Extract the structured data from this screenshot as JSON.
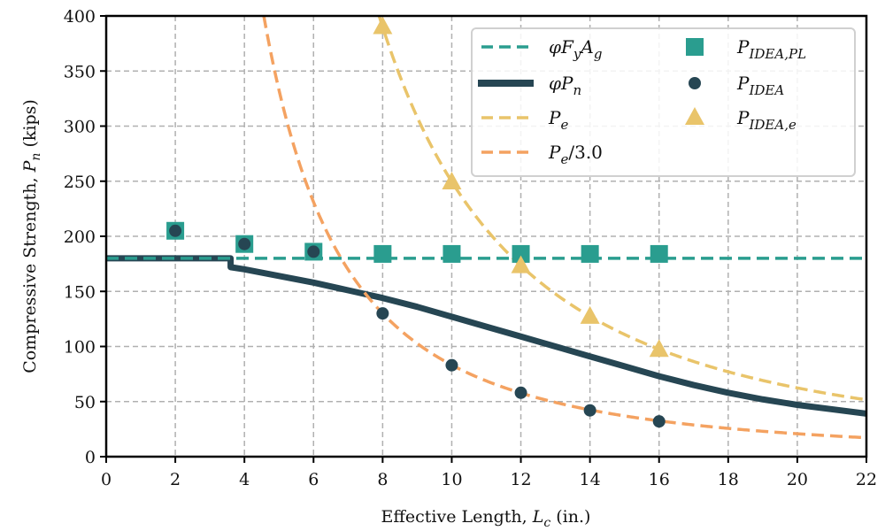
{
  "chart_data": {
    "type": "line",
    "title": "",
    "xlabel": "Effective Length, L_c (in.)",
    "ylabel": "Compressive Strength, P_n (kips)",
    "xlim": [
      0,
      22
    ],
    "ylim": [
      0,
      400
    ],
    "xticks": [
      0,
      2,
      4,
      6,
      8,
      10,
      12,
      14,
      16,
      18,
      20,
      22
    ],
    "yticks": [
      0,
      50,
      100,
      150,
      200,
      250,
      300,
      350,
      400
    ],
    "grid": true,
    "legend_position": "top-right",
    "legend_columns": 2,
    "colors": {
      "phiFyAg": "#2a9d8f",
      "phiPn": "#264653",
      "Pe": "#e9c46a",
      "Pe3": "#f4a261",
      "grid": "#b0b0b0"
    },
    "series": [
      {
        "name": "φF_yA_g",
        "kind": "line-dashed",
        "color_key": "phiFyAg",
        "x": [
          0,
          22
        ],
        "y": [
          180,
          180
        ]
      },
      {
        "name": "φP_n",
        "kind": "line-solid",
        "color_key": "phiPn",
        "x": [
          0,
          3.6,
          3.6,
          4,
          5,
          6,
          7,
          8,
          9,
          10,
          11,
          12,
          13,
          14,
          15,
          16,
          17,
          18,
          19,
          20,
          21,
          22
        ],
        "y": [
          180,
          180,
          172,
          170,
          164,
          158,
          151,
          144,
          136,
          127,
          118,
          109,
          100,
          91,
          82,
          73,
          65,
          58,
          52,
          47,
          43,
          39
        ]
      },
      {
        "name": "P_e",
        "kind": "line-dashed",
        "color_key": "Pe",
        "formula_constant": 24960,
        "x_start": 7.9,
        "x_end": 22
      },
      {
        "name": "P_e/3.0",
        "kind": "line-dashed",
        "color_key": "Pe3",
        "formula_constant": 8320,
        "x_start": 4.56,
        "x_end": 22
      },
      {
        "name": "P_IDEA,PL",
        "kind": "marker-square",
        "color_key": "phiFyAg",
        "x": [
          2,
          4,
          6,
          8,
          10,
          12,
          14,
          16
        ],
        "y": [
          205,
          193,
          186,
          184,
          184,
          184,
          184,
          184
        ]
      },
      {
        "name": "P_IDEA",
        "kind": "marker-circle",
        "color_key": "phiPn",
        "x": [
          2,
          4,
          6,
          8,
          10,
          12,
          14,
          16
        ],
        "y": [
          205,
          193,
          186,
          130,
          83,
          58,
          42,
          32
        ]
      },
      {
        "name": "P_IDEA,e",
        "kind": "marker-triangle",
        "color_key": "Pe",
        "x": [
          8,
          10,
          12,
          14,
          16
        ],
        "y": [
          390,
          249,
          173,
          127,
          97
        ]
      }
    ],
    "legend": [
      {
        "label_main": "φF",
        "label_sub": "y",
        "label_main2": "A",
        "label_sub2": "g",
        "symbol": "dash",
        "color_key": "phiFyAg"
      },
      {
        "label_main": "φP",
        "label_sub": "n",
        "label_main2": "",
        "label_sub2": "",
        "symbol": "solid",
        "color_key": "phiPn"
      },
      {
        "label_main": "P",
        "label_sub": "e",
        "label_main2": "",
        "label_sub2": "",
        "symbol": "dash",
        "color_key": "Pe"
      },
      {
        "label_main": "P",
        "label_sub": "e",
        "label_main2": "/3.0",
        "label_sub2": "",
        "symbol": "dash",
        "color_key": "Pe3"
      },
      {
        "label_main": "P",
        "label_sub": "IDEA,PL",
        "label_main2": "",
        "label_sub2": "",
        "symbol": "square",
        "color_key": "phiFyAg"
      },
      {
        "label_main": "P",
        "label_sub": "IDEA",
        "label_main2": "",
        "label_sub2": "",
        "symbol": "circle",
        "color_key": "phiPn"
      },
      {
        "label_main": "P",
        "label_sub": "IDEA,e",
        "label_main2": "",
        "label_sub2": "",
        "symbol": "triangle",
        "color_key": "Pe"
      }
    ]
  }
}
